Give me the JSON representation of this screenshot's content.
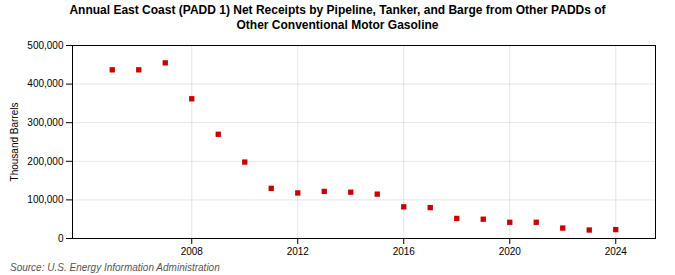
{
  "chart_data": {
    "type": "scatter",
    "title": "Annual East Coast (PADD 1) Net Receipts by Pipeline, Tanker, and Barge from Other PADDs of\nOther Conventional Motor Gasoline",
    "ylabel": "Thousand Barrels",
    "source": "Source: U.S. Energy Information Administration",
    "x": [
      2005,
      2006,
      2007,
      2008,
      2009,
      2010,
      2011,
      2012,
      2013,
      2014,
      2015,
      2016,
      2017,
      2018,
      2019,
      2020,
      2021,
      2022,
      2023,
      2024
    ],
    "values": [
      437000,
      437000,
      455000,
      362000,
      270000,
      198000,
      130000,
      118000,
      122000,
      120000,
      115000,
      82000,
      80000,
      52000,
      50000,
      42000,
      42000,
      27000,
      22000,
      23000
    ],
    "color": "#cc0000",
    "marker": "square",
    "xlim": [
      2003.5,
      2025.5
    ],
    "xticks": [
      2008,
      2012,
      2016,
      2020,
      2024
    ],
    "ylim": [
      0,
      500000
    ],
    "yticks": [
      0,
      {
        "value": 100000,
        "label": "100,000"
      },
      {
        "value": 200000,
        "label": "200,000"
      },
      {
        "value": 300000,
        "label": "300,000"
      },
      {
        "value": 400000,
        "label": "400,000"
      },
      {
        "value": 500000,
        "label": "500,000"
      }
    ],
    "grid": true
  }
}
